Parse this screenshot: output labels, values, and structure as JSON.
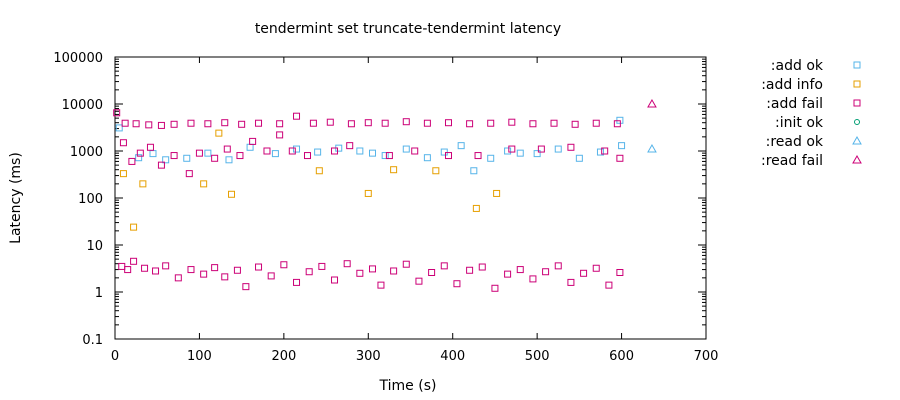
{
  "chart_data": {
    "type": "scatter",
    "title": "tendermint set truncate-tendermint latency",
    "xlabel": "Time (s)",
    "ylabel": "Latency (ms)",
    "xlim": [
      0,
      700
    ],
    "ylim": [
      0.1,
      100000
    ],
    "y_scale": "log",
    "x_ticks": [
      "0",
      "100",
      "200",
      "300",
      "400",
      "500",
      "600",
      "700"
    ],
    "y_ticks": [
      "0.1",
      "1",
      "10",
      "100",
      "1000",
      "10000",
      "100000"
    ],
    "grid": false,
    "legend_position": "outside-right",
    "series": [
      {
        "name": ":add ok",
        "marker": "square",
        "color": "#56b4e9",
        "points": [
          [
            5,
            3100
          ],
          [
            28,
            720
          ],
          [
            45,
            880
          ],
          [
            60,
            650
          ],
          [
            85,
            700
          ],
          [
            110,
            900
          ],
          [
            135,
            650
          ],
          [
            160,
            1200
          ],
          [
            190,
            880
          ],
          [
            215,
            1100
          ],
          [
            240,
            950
          ],
          [
            265,
            1150
          ],
          [
            290,
            1000
          ],
          [
            305,
            900
          ],
          [
            320,
            800
          ],
          [
            345,
            1100
          ],
          [
            370,
            720
          ],
          [
            390,
            950
          ],
          [
            410,
            1300
          ],
          [
            425,
            380
          ],
          [
            445,
            700
          ],
          [
            465,
            1000
          ],
          [
            480,
            900
          ],
          [
            500,
            880
          ],
          [
            525,
            1100
          ],
          [
            550,
            700
          ],
          [
            575,
            950
          ],
          [
            598,
            4500
          ],
          [
            600,
            1300
          ]
        ]
      },
      {
        "name": ":add info",
        "marker": "square",
        "color": "#e69f00",
        "points": [
          [
            10,
            330
          ],
          [
            22,
            24
          ],
          [
            33,
            200
          ],
          [
            105,
            200
          ],
          [
            123,
            2400
          ],
          [
            138,
            120
          ],
          [
            242,
            380
          ],
          [
            300,
            125
          ],
          [
            330,
            400
          ],
          [
            380,
            380
          ],
          [
            428,
            60
          ],
          [
            452,
            125
          ]
        ]
      },
      {
        "name": ":add fail",
        "marker": "square",
        "color": "#cc0077",
        "points": [
          [
            2,
            6500
          ],
          [
            12,
            3900
          ],
          [
            25,
            3800
          ],
          [
            40,
            3600
          ],
          [
            55,
            3500
          ],
          [
            70,
            3700
          ],
          [
            90,
            3900
          ],
          [
            110,
            3800
          ],
          [
            130,
            4000
          ],
          [
            150,
            3700
          ],
          [
            170,
            3900
          ],
          [
            195,
            3800
          ],
          [
            215,
            5500
          ],
          [
            235,
            3900
          ],
          [
            255,
            4100
          ],
          [
            280,
            3800
          ],
          [
            300,
            4000
          ],
          [
            320,
            3900
          ],
          [
            345,
            4200
          ],
          [
            370,
            3900
          ],
          [
            395,
            4000
          ],
          [
            420,
            3800
          ],
          [
            445,
            3900
          ],
          [
            470,
            4100
          ],
          [
            495,
            3800
          ],
          [
            520,
            3900
          ],
          [
            545,
            3700
          ],
          [
            570,
            3900
          ],
          [
            595,
            3800
          ],
          [
            10,
            1500
          ],
          [
            20,
            600
          ],
          [
            30,
            900
          ],
          [
            42,
            1200
          ],
          [
            55,
            500
          ],
          [
            70,
            800
          ],
          [
            88,
            330
          ],
          [
            100,
            900
          ],
          [
            118,
            700
          ],
          [
            133,
            1100
          ],
          [
            148,
            800
          ],
          [
            163,
            1600
          ],
          [
            180,
            1000
          ],
          [
            195,
            2200
          ],
          [
            210,
            1000
          ],
          [
            228,
            800
          ],
          [
            260,
            1000
          ],
          [
            278,
            1300
          ],
          [
            325,
            800
          ],
          [
            355,
            1000
          ],
          [
            395,
            800
          ],
          [
            430,
            800
          ],
          [
            470,
            1100
          ],
          [
            505,
            1100
          ],
          [
            540,
            1200
          ],
          [
            580,
            1000
          ],
          [
            598,
            700
          ],
          [
            8,
            3.5
          ],
          [
            15,
            3.0
          ],
          [
            22,
            4.5
          ],
          [
            35,
            3.2
          ],
          [
            48,
            2.8
          ],
          [
            60,
            3.6
          ],
          [
            75,
            2.0
          ],
          [
            90,
            3.0
          ],
          [
            105,
            2.4
          ],
          [
            118,
            3.3
          ],
          [
            130,
            2.1
          ],
          [
            145,
            2.9
          ],
          [
            155,
            1.3
          ],
          [
            170,
            3.4
          ],
          [
            185,
            2.2
          ],
          [
            200,
            3.8
          ],
          [
            215,
            1.6
          ],
          [
            230,
            2.7
          ],
          [
            245,
            3.5
          ],
          [
            260,
            1.8
          ],
          [
            275,
            4.0
          ],
          [
            290,
            2.5
          ],
          [
            305,
            3.1
          ],
          [
            315,
            1.4
          ],
          [
            330,
            2.8
          ],
          [
            345,
            3.9
          ],
          [
            360,
            1.7
          ],
          [
            375,
            2.6
          ],
          [
            390,
            3.6
          ],
          [
            405,
            1.5
          ],
          [
            420,
            2.9
          ],
          [
            435,
            3.4
          ],
          [
            450,
            1.2
          ],
          [
            465,
            2.4
          ],
          [
            480,
            3.0
          ],
          [
            495,
            1.9
          ],
          [
            510,
            2.7
          ],
          [
            525,
            3.6
          ],
          [
            540,
            1.6
          ],
          [
            555,
            2.5
          ],
          [
            570,
            3.2
          ],
          [
            585,
            1.4
          ],
          [
            598,
            2.6
          ]
        ]
      },
      {
        "name": ":init ok",
        "marker": "circle",
        "color": "#009e73",
        "points": []
      },
      {
        "name": ":read ok",
        "marker": "triangle",
        "color": "#56b4e9",
        "points": [
          [
            636,
            1100
          ]
        ]
      },
      {
        "name": ":read fail",
        "marker": "triangle",
        "color": "#cc0077",
        "points": [
          [
            636,
            10000
          ]
        ]
      }
    ]
  }
}
